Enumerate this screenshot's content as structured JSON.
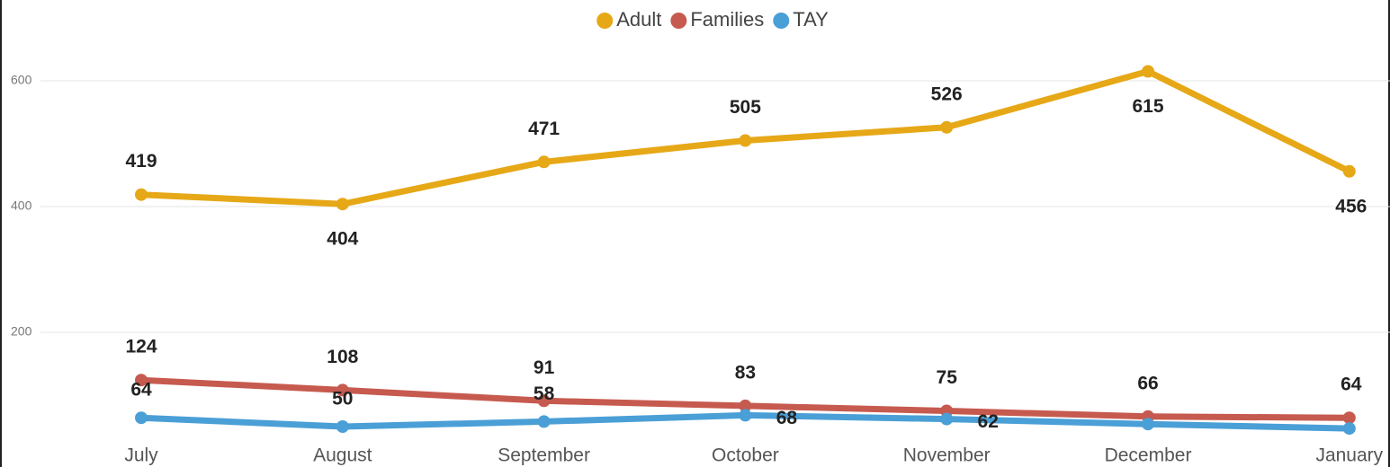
{
  "chart_data": {
    "type": "line",
    "categories": [
      "July",
      "August",
      "September",
      "October",
      "November",
      "December",
      "January"
    ],
    "series": [
      {
        "name": "Adult",
        "color": "#e6a817",
        "values": [
          419,
          404,
          471,
          505,
          526,
          615,
          456
        ]
      },
      {
        "name": "Families",
        "color": "#c65a4f",
        "values": [
          124,
          108,
          91,
          83,
          75,
          66,
          64
        ]
      },
      {
        "name": "TAY",
        "color": "#4a9fd6",
        "values": [
          64,
          50,
          58,
          68,
          62,
          54,
          47
        ],
        "value_labels": [
          "64",
          "50",
          "58",
          "68",
          "62",
          null,
          null
        ]
      }
    ],
    "ylim": [
      0,
      700
    ],
    "yticks": [
      200,
      400,
      600
    ],
    "grid": true,
    "legend": "top"
  }
}
